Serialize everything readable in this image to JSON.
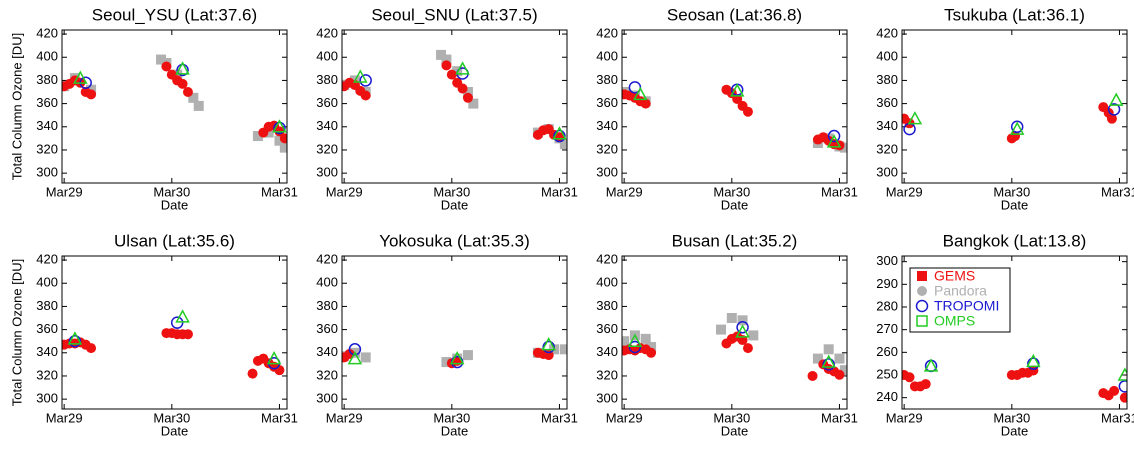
{
  "chart_data": [
    {
      "type": "scatter",
      "title": "Seoul_YSU (Lat:37.6)",
      "xlabel": "Date",
      "ylabel": "Total Column Ozone [DU]",
      "xlim": [
        -0.02,
        2.07
      ],
      "xticks": [
        {
          "value": 0,
          "label": "Mar29"
        },
        {
          "value": 1,
          "label": "Mar30"
        },
        {
          "value": 2,
          "label": "Mar31"
        }
      ],
      "ylim": [
        291.5,
        423.5
      ],
      "yticks": [
        300,
        320,
        340,
        360,
        380,
        400,
        420
      ],
      "series": [
        {
          "color": "#b0b0b0",
          "marker": "square",
          "x": [
            0,
            0.1,
            0.25,
            0.9,
            0.95,
            1.05,
            1.2,
            1.25,
            1.8,
            1.9,
            2.0,
            2.05
          ],
          "values": [
            375,
            382,
            372,
            398,
            395,
            385,
            365,
            358,
            332,
            335,
            328,
            322
          ]
        },
        {
          "color": "#ee1111",
          "marker": "dot",
          "x": [
            0,
            0.05,
            0.1,
            0.15,
            0.2,
            0.25,
            0.95,
            1.0,
            1.05,
            1.1,
            1.15,
            1.85,
            1.9,
            1.95,
            2.0,
            2.05
          ],
          "values": [
            375,
            377,
            380,
            378,
            370,
            368,
            392,
            385,
            380,
            377,
            370,
            335,
            340,
            341,
            336,
            330
          ]
        },
        {
          "color": "#1a1ad0",
          "marker": "circle",
          "x": [
            0.2,
            1.1,
            2.0
          ],
          "values": [
            378,
            389,
            339
          ]
        },
        {
          "color": "#22cc22",
          "marker": "triangle",
          "x": [
            0.15,
            1.1,
            2.0
          ],
          "values": [
            382,
            390,
            340
          ]
        }
      ]
    },
    {
      "type": "scatter",
      "title": "Seoul_SNU (Lat:37.5)",
      "xlabel": "Date",
      "xlim": [
        -0.02,
        2.07
      ],
      "xticks": [
        {
          "value": 0,
          "label": "Mar29"
        },
        {
          "value": 1,
          "label": "Mar30"
        },
        {
          "value": 2,
          "label": "Mar31"
        }
      ],
      "ylim": [
        291.5,
        423.5
      ],
      "yticks": [
        300,
        320,
        340,
        360,
        380,
        400,
        420
      ],
      "series": [
        {
          "color": "#b0b0b0",
          "marker": "square",
          "x": [
            0,
            0.1,
            0.2,
            0.9,
            0.95,
            1.05,
            1.15,
            1.2,
            1.8,
            1.9,
            2.0,
            2.05
          ],
          "values": [
            376,
            380,
            370,
            402,
            398,
            388,
            370,
            360,
            335,
            338,
            330,
            325
          ]
        },
        {
          "color": "#ee1111",
          "marker": "dot",
          "x": [
            0,
            0.05,
            0.1,
            0.15,
            0.2,
            0.95,
            1.0,
            1.05,
            1.1,
            1.15,
            1.8,
            1.85,
            1.9,
            1.95,
            2.0
          ],
          "values": [
            375,
            378,
            376,
            371,
            367,
            393,
            385,
            378,
            373,
            365,
            333,
            337,
            338,
            333,
            331
          ]
        },
        {
          "color": "#1a1ad0",
          "marker": "circle",
          "x": [
            0.2,
            1.1,
            2.0
          ],
          "values": [
            380,
            386,
            332
          ]
        },
        {
          "color": "#22cc22",
          "marker": "triangle",
          "x": [
            0.15,
            1.1,
            2.0
          ],
          "values": [
            383,
            390,
            334
          ]
        }
      ]
    },
    {
      "type": "scatter",
      "title": "Seosan (Lat:36.8)",
      "xlabel": "Date",
      "xlim": [
        -0.02,
        2.07
      ],
      "xticks": [
        {
          "value": 0,
          "label": "Mar29"
        },
        {
          "value": 1,
          "label": "Mar30"
        },
        {
          "value": 2,
          "label": "Mar31"
        }
      ],
      "ylim": [
        291.5,
        423.5
      ],
      "yticks": [
        300,
        320,
        340,
        360,
        380,
        400,
        420
      ],
      "series": [
        {
          "color": "#b0b0b0",
          "marker": "square",
          "x": [
            0,
            0.1,
            0.2,
            1.8,
            1.9,
            2.0,
            2.05
          ],
          "values": [
            370,
            367,
            362,
            326,
            330,
            323,
            322
          ]
        },
        {
          "color": "#ee1111",
          "marker": "dot",
          "x": [
            0,
            0.05,
            0.1,
            0.15,
            0.2,
            0.95,
            1.0,
            1.05,
            1.1,
            1.15,
            1.8,
            1.85,
            1.9,
            1.95,
            2.0
          ],
          "values": [
            368,
            367,
            365,
            362,
            360,
            372,
            369,
            364,
            358,
            353,
            329,
            331,
            328,
            325,
            324
          ]
        },
        {
          "color": "#1a1ad0",
          "marker": "circle",
          "x": [
            0.1,
            1.05,
            1.95
          ],
          "values": [
            374,
            372,
            332
          ]
        },
        {
          "color": "#22cc22",
          "marker": "triangle",
          "x": [
            0.15,
            1.05,
            1.95
          ],
          "values": [
            368,
            371,
            327
          ]
        }
      ]
    },
    {
      "type": "scatter",
      "title": "Tsukuba (Lat:36.1)",
      "xlabel": "Date",
      "xlim": [
        -0.02,
        2.07
      ],
      "xticks": [
        {
          "value": 0,
          "label": "Mar29"
        },
        {
          "value": 1,
          "label": "Mar30"
        },
        {
          "value": 2,
          "label": "Mar31"
        }
      ],
      "ylim": [
        291.5,
        423.5
      ],
      "yticks": [
        300,
        320,
        340,
        360,
        380,
        400,
        420
      ],
      "series": [
        {
          "color": "#ee1111",
          "marker": "dot",
          "x": [
            0,
            0.05,
            1.0,
            1.03,
            1.85,
            1.9,
            1.93
          ],
          "values": [
            347,
            343,
            330,
            332,
            357,
            352,
            347
          ]
        },
        {
          "color": "#1a1ad0",
          "marker": "circle",
          "x": [
            0.05,
            1.05,
            1.95
          ],
          "values": [
            338,
            340,
            355
          ]
        },
        {
          "color": "#22cc22",
          "marker": "triangle",
          "x": [
            0.1,
            1.05,
            1.97
          ],
          "values": [
            347,
            338,
            363
          ]
        }
      ]
    },
    {
      "type": "scatter",
      "title": "Ulsan (Lat:35.6)",
      "xlabel": "Date",
      "ylabel": "Total Column Ozone [DU]",
      "xlim": [
        -0.02,
        2.07
      ],
      "xticks": [
        {
          "value": 0,
          "label": "Mar29"
        },
        {
          "value": 1,
          "label": "Mar30"
        },
        {
          "value": 2,
          "label": "Mar31"
        }
      ],
      "ylim": [
        291.5,
        423.5
      ],
      "yticks": [
        300,
        320,
        340,
        360,
        380,
        400,
        420
      ],
      "series": [
        {
          "color": "#ee1111",
          "marker": "dot",
          "x": [
            0,
            0.05,
            0.1,
            0.15,
            0.2,
            0.25,
            0.95,
            1.0,
            1.05,
            1.1,
            1.15,
            1.75,
            1.8,
            1.85,
            1.9,
            1.95,
            2.0
          ],
          "values": [
            347,
            348,
            348,
            349,
            347,
            344,
            357,
            357,
            356,
            356,
            356,
            322,
            333,
            335,
            331,
            328,
            325
          ]
        },
        {
          "color": "#1a1ad0",
          "marker": "circle",
          "x": [
            0.1,
            1.05,
            1.95
          ],
          "values": [
            350,
            366,
            331
          ]
        },
        {
          "color": "#22cc22",
          "marker": "triangle",
          "x": [
            0.1,
            1.1,
            1.95
          ],
          "values": [
            352,
            371,
            335
          ]
        }
      ]
    },
    {
      "type": "scatter",
      "title": "Yokosuka (Lat:35.3)",
      "xlabel": "Date",
      "xlim": [
        -0.02,
        2.07
      ],
      "xticks": [
        {
          "value": 0,
          "label": "Mar29"
        },
        {
          "value": 1,
          "label": "Mar30"
        },
        {
          "value": 2,
          "label": "Mar31"
        }
      ],
      "ylim": [
        291.5,
        423.5
      ],
      "yticks": [
        300,
        320,
        340,
        360,
        380,
        400,
        420
      ],
      "series": [
        {
          "color": "#b0b0b0",
          "marker": "square",
          "x": [
            0,
            0.1,
            0.2,
            0.95,
            1.05,
            1.15,
            1.8,
            1.95,
            2.05
          ],
          "values": [
            337,
            340,
            336,
            332,
            335,
            338,
            340,
            343,
            343
          ]
        },
        {
          "color": "#ee1111",
          "marker": "dot",
          "x": [
            0,
            0.05,
            1.0,
            1.05,
            1.8,
            1.85,
            1.9
          ],
          "values": [
            336,
            339,
            331,
            333,
            340,
            339,
            338
          ]
        },
        {
          "color": "#1a1ad0",
          "marker": "circle",
          "x": [
            0.1,
            1.05,
            1.9
          ],
          "values": [
            343,
            332,
            345
          ]
        },
        {
          "color": "#22cc22",
          "marker": "triangle",
          "x": [
            0.1,
            1.05,
            1.9
          ],
          "values": [
            335,
            335,
            347
          ]
        }
      ]
    },
    {
      "type": "scatter",
      "title": "Busan (Lat:35.2)",
      "xlabel": "Date",
      "xlim": [
        -0.02,
        2.07
      ],
      "xticks": [
        {
          "value": 0,
          "label": "Mar29"
        },
        {
          "value": 1,
          "label": "Mar30"
        },
        {
          "value": 2,
          "label": "Mar31"
        }
      ],
      "ylim": [
        291.5,
        423.5
      ],
      "yticks": [
        300,
        320,
        340,
        360,
        380,
        400,
        420
      ],
      "series": [
        {
          "color": "#b0b0b0",
          "marker": "square",
          "x": [
            0,
            0.1,
            0.2,
            0.25,
            0.9,
            1.0,
            1.1,
            1.2,
            1.8,
            1.9,
            2.0,
            2.05
          ],
          "values": [
            350,
            355,
            352,
            345,
            360,
            370,
            368,
            355,
            335,
            343,
            335,
            325
          ]
        },
        {
          "color": "#ee1111",
          "marker": "dot",
          "x": [
            0,
            0.05,
            0.1,
            0.15,
            0.2,
            0.25,
            0.95,
            1.0,
            1.05,
            1.1,
            1.15,
            1.75,
            1.85,
            1.9,
            1.95,
            2.0
          ],
          "values": [
            342,
            343,
            342,
            344,
            343,
            340,
            348,
            352,
            354,
            351,
            344,
            320,
            330,
            326,
            324,
            321
          ]
        },
        {
          "color": "#1a1ad0",
          "marker": "circle",
          "x": [
            0.1,
            1.1,
            1.9
          ],
          "values": [
            345,
            362,
            330
          ]
        },
        {
          "color": "#22cc22",
          "marker": "triangle",
          "x": [
            0.1,
            1.1,
            1.9
          ],
          "values": [
            350,
            358,
            332
          ]
        }
      ]
    },
    {
      "type": "scatter",
      "title": "Bangkok (Lat:13.8)",
      "xlabel": "Date",
      "legend": "upper left",
      "xlim": [
        -0.02,
        2.07
      ],
      "xticks": [
        {
          "value": 0,
          "label": "Mar29"
        },
        {
          "value": 1,
          "label": "Mar30"
        },
        {
          "value": 2,
          "label": "Mar31"
        }
      ],
      "ylim": [
        235,
        302.5
      ],
      "yticks": [
        240,
        250,
        260,
        270,
        280,
        290,
        300
      ],
      "series": [
        {
          "name": "GEMS",
          "color": "#ee1111",
          "marker": "dot",
          "legend_marker": "fsquare",
          "x": [
            0,
            0.05,
            0.1,
            0.15,
            0.2,
            1.0,
            1.05,
            1.1,
            1.15,
            1.2,
            1.85,
            1.9,
            1.95,
            2.05
          ],
          "values": [
            250,
            249,
            245,
            245,
            246,
            250,
            250,
            251,
            251,
            252,
            242,
            241,
            243,
            240
          ]
        },
        {
          "name": "Pandora",
          "color": "#b0b0b0",
          "marker": "square",
          "legend_marker": "dot",
          "x": [],
          "values": []
        },
        {
          "name": "TROPOMI",
          "color": "#1a1ad0",
          "marker": "circle",
          "legend_marker": "circle",
          "x": [
            0.25,
            1.2,
            2.05
          ],
          "values": [
            254,
            255,
            245
          ]
        },
        {
          "name": "OMPS",
          "color": "#22cc22",
          "marker": "triangle",
          "legend_marker": "osquare",
          "x": [
            0.25,
            1.2,
            2.05
          ],
          "values": [
            254,
            256,
            250
          ]
        }
      ]
    }
  ]
}
